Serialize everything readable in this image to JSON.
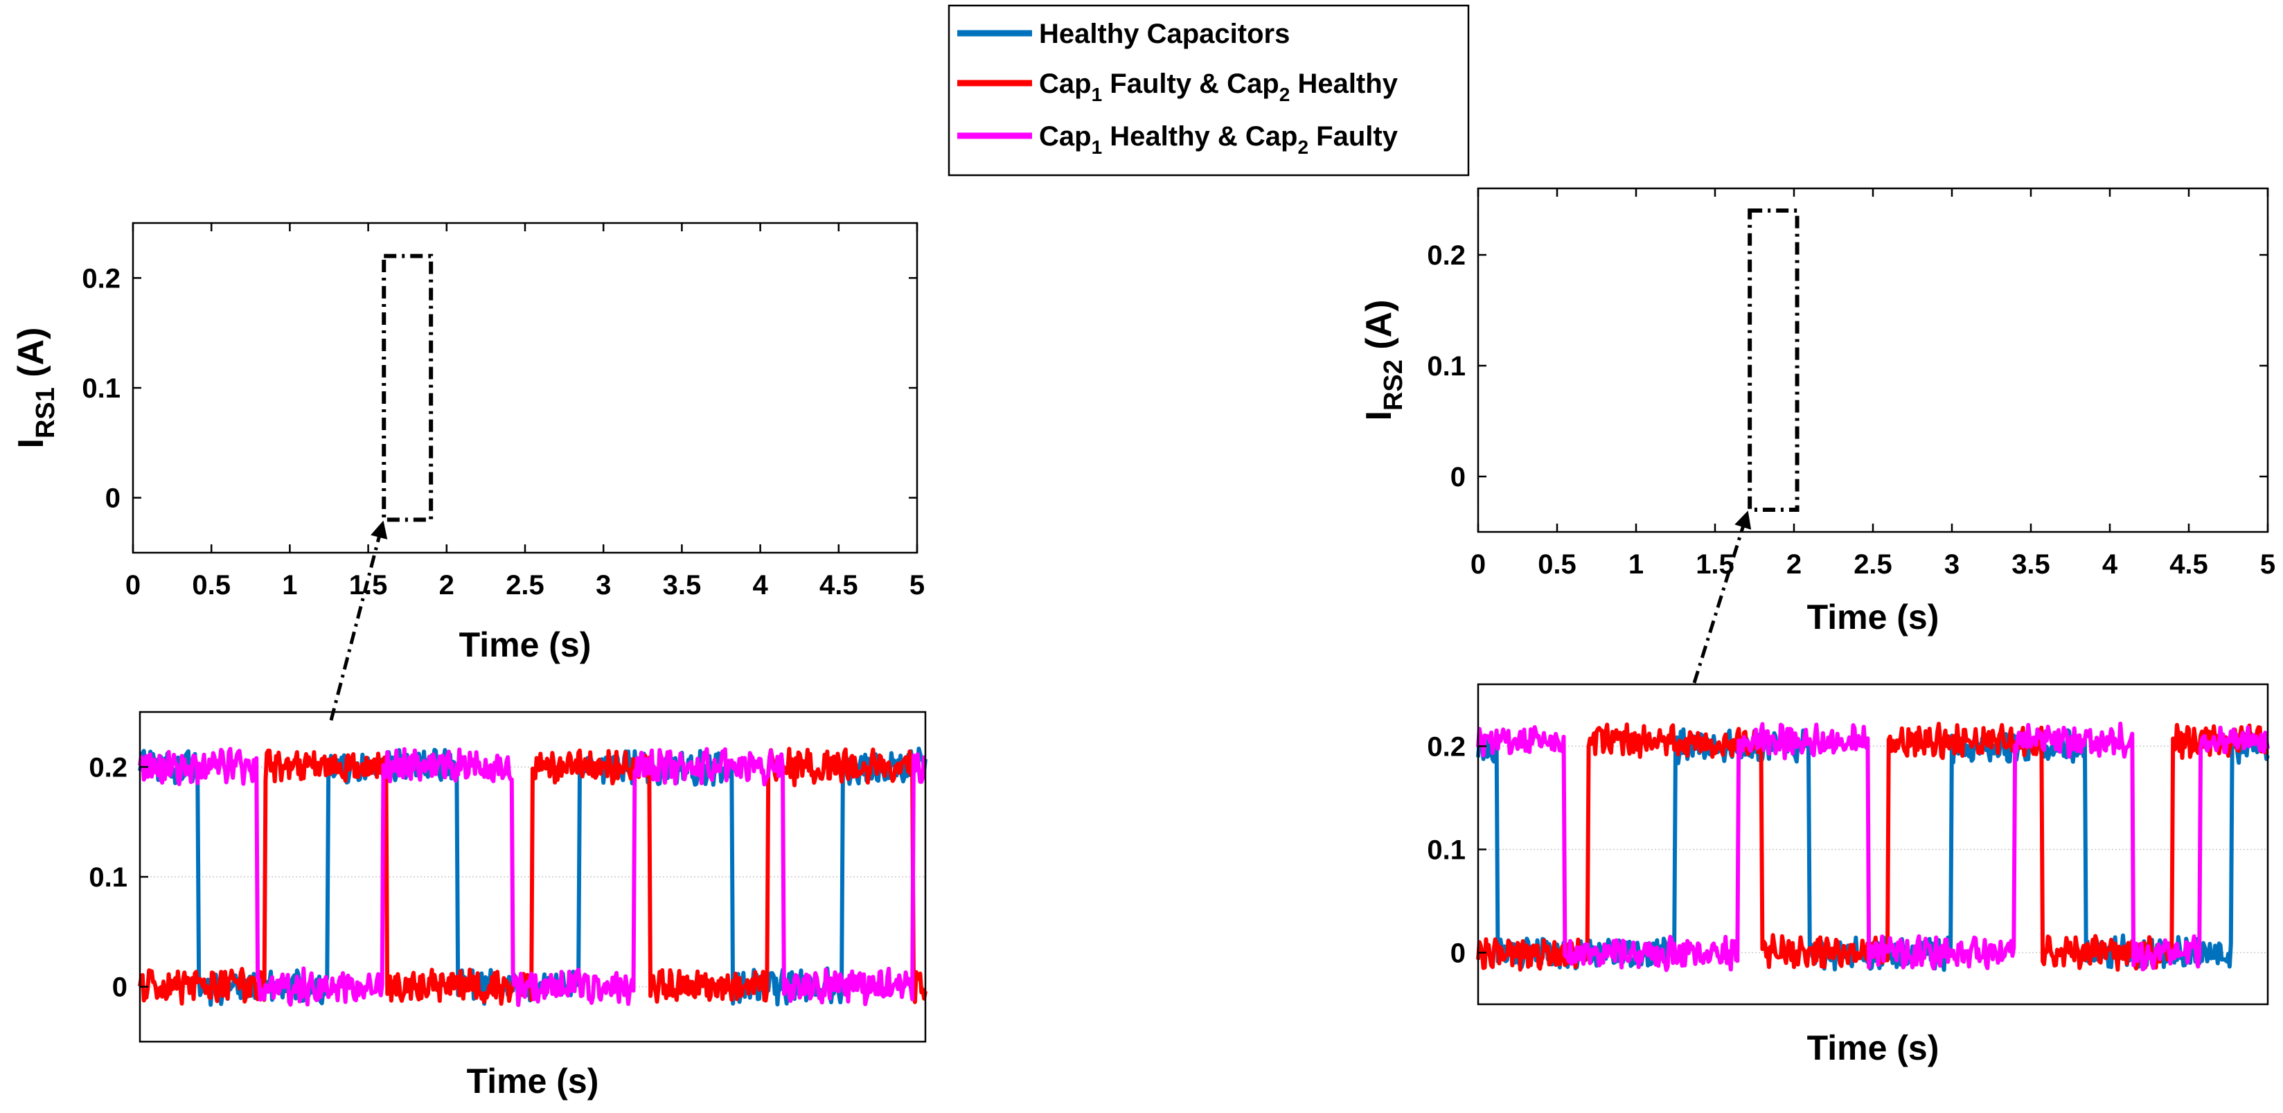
{
  "legend": {
    "items": [
      {
        "key": "healthy",
        "label": "Healthy Capacitors",
        "color": "#0072BD"
      },
      {
        "key": "cap1_faulty",
        "label": "Cap_1 Faulty & Cap_2 Healthy",
        "color": "#FF0000"
      },
      {
        "key": "cap2_faulty",
        "label": "Cap_1 Healthy & Cap_2 Faulty",
        "color": "#FF00FF"
      }
    ]
  },
  "chart_data": [
    {
      "id": "irs1_full",
      "type": "line",
      "title": "",
      "xlabel": "Time (s)",
      "ylabel": {
        "main": "I",
        "sub": "RS1",
        "unit": " (A)"
      },
      "xlim": [
        0,
        5
      ],
      "ylim": [
        -0.05,
        0.25
      ],
      "xticks": [
        0,
        0.5,
        1,
        1.5,
        2,
        2.5,
        3,
        3.5,
        4,
        4.5,
        5
      ],
      "xtick_labels": [
        "0",
        "0.5",
        "1",
        "1.5",
        "2",
        "2.5",
        "3",
        "3.5",
        "4",
        "4.5",
        "5"
      ],
      "yticks": [
        0,
        0.1,
        0.2
      ],
      "ytick_labels": [
        "0",
        "0.1",
        "0.2"
      ],
      "grid": false,
      "envelope": {
        "low": -0.015,
        "high": 0.215,
        "description_series": [
          "healthy",
          "cap1_faulty",
          "cap2_faulty"
        ]
      },
      "zoom_window": {
        "x": [
          1.6,
          1.9
        ],
        "y": [
          -0.02,
          0.22
        ]
      }
    },
    {
      "id": "irs2_full",
      "type": "line",
      "title": "",
      "xlabel": "Time (s)",
      "ylabel": {
        "main": "I",
        "sub": "RS2",
        "unit": " (A)"
      },
      "xlim": [
        0,
        5
      ],
      "ylim": [
        -0.05,
        0.26
      ],
      "xticks": [
        0,
        0.5,
        1,
        1.5,
        2,
        2.5,
        3,
        3.5,
        4,
        4.5,
        5
      ],
      "xtick_labels": [
        "0",
        "0.5",
        "1",
        "1.5",
        "2",
        "2.5",
        "3",
        "3.5",
        "4",
        "4.5",
        "5"
      ],
      "yticks": [
        0,
        0.1,
        0.2
      ],
      "ytick_labels": [
        "0",
        "0.1",
        "0.2"
      ],
      "grid": false,
      "envelope": {
        "low": -0.03,
        "high": 0.235,
        "description_series": [
          "healthy",
          "cap1_faulty",
          "cap2_faulty"
        ]
      },
      "zoom_window": {
        "x": [
          1.72,
          2.02
        ],
        "y": [
          -0.03,
          0.24
        ]
      }
    },
    {
      "id": "irs1_zoom",
      "type": "line",
      "xlabel": "Time (s)",
      "xlim": [
        0,
        1
      ],
      "ylim": [
        -0.05,
        0.25
      ],
      "yticks": [
        0,
        0.1,
        0.2
      ],
      "ytick_labels": [
        "0",
        "0.1",
        "0.2"
      ],
      "grid": true,
      "series": [
        {
          "key": "healthy",
          "low": 0.0,
          "high": 0.2,
          "start_level": "high",
          "transitions": [
            0.075,
            0.24,
            0.405,
            0.56,
            0.755,
            0.895
          ]
        },
        {
          "key": "cap1_faulty",
          "low": 0.0,
          "high": 0.2,
          "start_level": "low",
          "transitions": [
            0.16,
            0.315,
            0.5,
            0.65,
            0.8,
            0.985
          ]
        },
        {
          "key": "cap2_faulty",
          "low": 0.0,
          "high": 0.2,
          "start_level": "high",
          "transitions": [
            0.15,
            0.31,
            0.475,
            0.63,
            0.82,
            0.985
          ]
        }
      ]
    },
    {
      "id": "irs2_zoom",
      "type": "line",
      "xlabel": "Time (s)",
      "xlim": [
        0,
        1
      ],
      "ylim": [
        -0.05,
        0.26
      ],
      "yticks": [
        0,
        0.1,
        0.2
      ],
      "ytick_labels": [
        "0",
        "0.1",
        "0.2"
      ],
      "grid": true,
      "series": [
        {
          "key": "healthy",
          "low": 0.0,
          "high": 0.2,
          "start_level": "high",
          "transitions": [
            0.025,
            0.25,
            0.42,
            0.6,
            0.77,
            0.955
          ]
        },
        {
          "key": "cap1_faulty",
          "low": 0.0,
          "high": 0.205,
          "start_level": "low",
          "transitions": [
            0.14,
            0.36,
            0.52,
            0.715,
            0.88
          ]
        },
        {
          "key": "cap2_faulty",
          "low": 0.0,
          "high": 0.205,
          "start_level": "high",
          "transitions": [
            0.11,
            0.33,
            0.495,
            0.68,
            0.83,
            0.915
          ]
        }
      ]
    }
  ]
}
